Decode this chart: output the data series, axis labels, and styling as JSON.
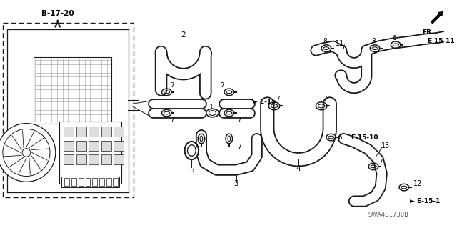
{
  "bg_color": "#ffffff",
  "lc": "#1a1a1a",
  "tc": "#000000",
  "labels": {
    "b1720": "B-17-20",
    "e15": "► E-15",
    "e151": "► E-15-1",
    "e1510": "E-15-10",
    "e1511": "E-15-11",
    "fr": "FR.",
    "watermark": "SWA4B1730B"
  },
  "figsize": [
    6.4,
    3.19
  ],
  "dpi": 100
}
